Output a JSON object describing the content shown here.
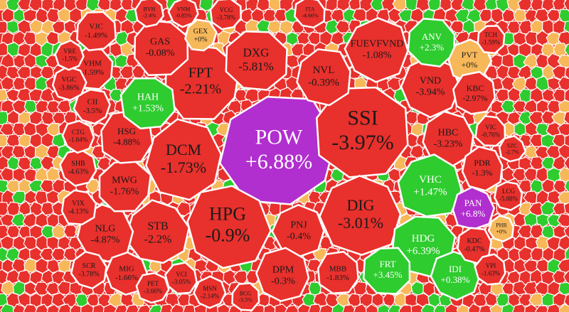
{
  "cells": [
    {
      "ticker": "POW",
      "change": "+6.88%",
      "color": "#b12fcf"
    },
    {
      "ticker": "SSI",
      "change": "-3.97%",
      "color": "#e8302c"
    },
    {
      "ticker": "HPG",
      "change": "-0.9%",
      "color": "#e8302c"
    },
    {
      "ticker": "DIG",
      "change": "-3.01%",
      "color": "#e8302c"
    },
    {
      "ticker": "DCM",
      "change": "-1.73%",
      "color": "#e8302c"
    },
    {
      "ticker": "FPT",
      "change": "-2.21%",
      "color": "#e8302c"
    },
    {
      "ticker": "DXG",
      "change": "-5.81%",
      "color": "#e8302c"
    },
    {
      "ticker": "NVL",
      "change": "-0.39%",
      "color": "#e8302c"
    },
    {
      "ticker": "FUEVFVND",
      "change": "-1.08%",
      "color": "#e8302c"
    },
    {
      "ticker": "VND",
      "change": "-3.94%",
      "color": "#e8302c"
    },
    {
      "ticker": "HBC",
      "change": "-3.23%",
      "color": "#e8302c"
    },
    {
      "ticker": "VHC",
      "change": "+1.47%",
      "color": "#2ecc2e"
    },
    {
      "ticker": "HDG",
      "change": "+6.39%",
      "color": "#2ecc2e"
    },
    {
      "ticker": "FRT",
      "change": "+3.45%",
      "color": "#2ecc2e"
    },
    {
      "ticker": "IDI",
      "change": "+0.38%",
      "color": "#2ecc2e"
    },
    {
      "ticker": "PAN",
      "change": "+6.8%",
      "color": "#b12fcf"
    },
    {
      "ticker": "PNJ",
      "change": "-0.4%",
      "color": "#e8302c"
    },
    {
      "ticker": "DPM",
      "change": "-0.3%",
      "color": "#e8302c"
    },
    {
      "ticker": "MBB",
      "change": "-1.83%",
      "color": "#e8302c"
    },
    {
      "ticker": "STB",
      "change": "-2.2%",
      "color": "#e8302c"
    },
    {
      "ticker": "NLG",
      "change": "-4.87%",
      "color": "#e8302c"
    },
    {
      "ticker": "MWG",
      "change": "-1.76%",
      "color": "#e8302c"
    },
    {
      "ticker": "HSG",
      "change": "-4.88%",
      "color": "#e8302c"
    },
    {
      "ticker": "HAH",
      "change": "+1.53%",
      "color": "#2ecc2e"
    },
    {
      "ticker": "GAS",
      "change": "-0.08%",
      "color": "#e8302c"
    },
    {
      "ticker": "VHM",
      "change": "-1.59%",
      "color": "#e8302c"
    },
    {
      "ticker": "VJC",
      "change": "-1.49%",
      "color": "#e8302c"
    },
    {
      "ticker": "GEX",
      "change": "+0%",
      "color": "#f7b85a"
    },
    {
      "ticker": "ANV",
      "change": "+2.3%",
      "color": "#2ecc2e"
    },
    {
      "ticker": "PVT",
      "change": "+0%",
      "color": "#f7b85a"
    },
    {
      "ticker": "KBC",
      "change": "-2.97%",
      "color": "#e8302c"
    },
    {
      "ticker": "PDR",
      "change": "-1.3%",
      "color": "#e8302c"
    },
    {
      "ticker": "MIG",
      "change": "-1.66%",
      "color": "#e8302c"
    },
    {
      "ticker": "SCR",
      "change": "-3.78%",
      "color": "#e8302c"
    },
    {
      "ticker": "CII",
      "change": "-3.5%",
      "color": "#e8302c"
    },
    {
      "ticker": "SHB",
      "change": "-4.63%",
      "color": "#e8302c"
    },
    {
      "ticker": "VIX",
      "change": "-4.13%",
      "color": "#e8302c"
    },
    {
      "ticker": "CTG",
      "change": "-1.84%",
      "color": "#e8302c"
    },
    {
      "ticker": "VGC",
      "change": "-3.86%",
      "color": "#e8302c"
    },
    {
      "ticker": "VRE",
      "change": "-1.5%",
      "color": "#e8302c"
    },
    {
      "ticker": "KDC",
      "change": "-0.47%",
      "color": "#e8302c"
    },
    {
      "ticker": "VPI",
      "change": "-1.63%",
      "color": "#e8302c"
    },
    {
      "ticker": "LCG",
      "change": "-5.88%",
      "color": "#e8302c"
    },
    {
      "ticker": "PHR",
      "change": "+0%",
      "color": "#f7b85a"
    },
    {
      "ticker": "VIC",
      "change": "-0.76%",
      "color": "#e8302c"
    },
    {
      "ticker": "SZC",
      "change": "-2.7%",
      "color": "#e8302c"
    },
    {
      "ticker": "TCH",
      "change": "-1.59%",
      "color": "#e8302c"
    },
    {
      "ticker": "PET",
      "change": "-3.66%",
      "color": "#e8302c"
    },
    {
      "ticker": "VCI",
      "change": "-3.05%",
      "color": "#e8302c"
    },
    {
      "ticker": "MSN",
      "change": "-2.14%",
      "color": "#e8302c"
    },
    {
      "ticker": "BCG",
      "change": "-3.5%",
      "color": "#e8302c"
    },
    {
      "ticker": "VCG",
      "change": "-3.78%",
      "color": "#e8302c"
    },
    {
      "ticker": "VNM",
      "change": "-0.85%",
      "color": "#e8302c"
    },
    {
      "ticker": "BVH",
      "change": "-2.4%",
      "color": "#e8302c"
    },
    {
      "ticker": "ITA",
      "change": "-4.66%",
      "color": "#e8302c"
    }
  ]
}
